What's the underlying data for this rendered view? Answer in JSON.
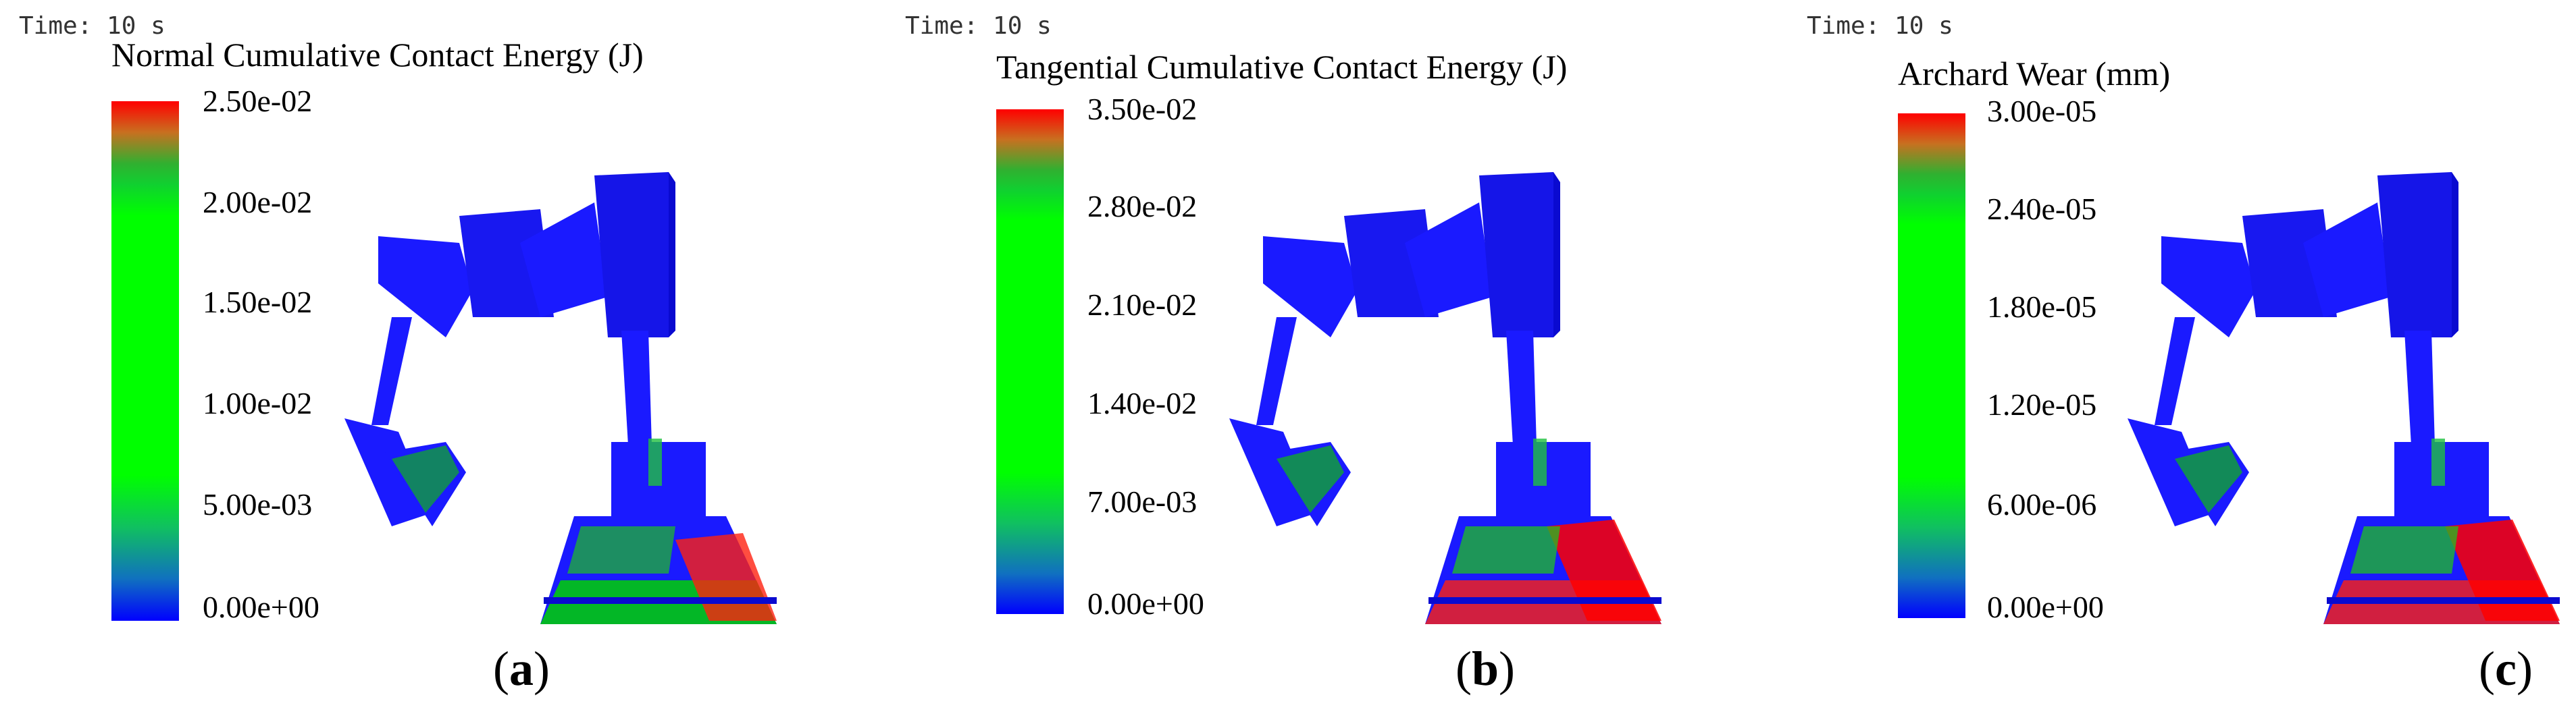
{
  "panels": [
    {
      "time": "Time: 10 s",
      "title": "Normal Cumulative Contact Energy (J)",
      "ticks": [
        "2.50e-02",
        "2.00e-02",
        "1.50e-02",
        "1.00e-02",
        "5.00e-03",
        "0.00e+00"
      ],
      "caption_open": "(",
      "caption_letter": "a",
      "caption_close": ")"
    },
    {
      "time": "Time: 10 s",
      "title": "Tangential Cumulative Contact Energy (J)",
      "ticks": [
        "3.50e-02",
        "2.80e-02",
        "2.10e-02",
        "1.40e-02",
        "7.00e-03",
        "0.00e+00"
      ],
      "caption_open": "(",
      "caption_letter": "b",
      "caption_close": ")"
    },
    {
      "time": "Time: 10 s",
      "title": "Archard Wear (mm)",
      "ticks": [
        "3.00e-05",
        "2.40e-05",
        "1.80e-05",
        "1.20e-05",
        "6.00e-06",
        "0.00e+00"
      ],
      "caption_open": "(",
      "caption_letter": "c",
      "caption_close": ")"
    }
  ],
  "colors": {
    "model_blue": "#1a1aff",
    "model_dark": "#0a0ad0",
    "wear_red": "#ff0000",
    "wear_green": "#00e000"
  }
}
